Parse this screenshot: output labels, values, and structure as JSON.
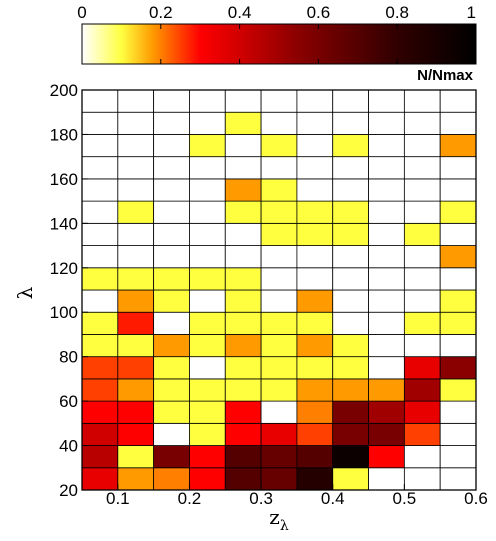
{
  "chart_data": {
    "type": "heatmap",
    "xlabel": "z",
    "xlabel_subscript": "λ",
    "ylabel": "λ",
    "x_edges": [
      0.05,
      0.1,
      0.15,
      0.2,
      0.25,
      0.3,
      0.35,
      0.4,
      0.45,
      0.5,
      0.55,
      0.6
    ],
    "y_edges": [
      20,
      30,
      40,
      50,
      60,
      70,
      80,
      90,
      100,
      110,
      120,
      130,
      140,
      150,
      160,
      170,
      180,
      190,
      200
    ],
    "xlim": [
      0.05,
      0.6
    ],
    "ylim": [
      20,
      200
    ],
    "xticks": [
      0.1,
      0.2,
      0.3,
      0.4,
      0.5,
      0.6
    ],
    "xtick_labels": [
      "0.1",
      "0.2",
      "0.3",
      "0.4",
      "0.5",
      "0.6"
    ],
    "yticks": [
      20,
      40,
      60,
      80,
      100,
      120,
      140,
      160,
      180,
      200
    ],
    "ytick_labels": [
      "20",
      "40",
      "60",
      "80",
      "100",
      "120",
      "140",
      "160",
      "180",
      "200"
    ],
    "colorbar": {
      "label": "N/Nmax",
      "range": [
        0,
        1
      ],
      "ticks": [
        0,
        0.2,
        0.4,
        0.6,
        0.8,
        1
      ],
      "tick_labels": [
        "0",
        "0.2",
        "0.4",
        "0.6",
        "0.8",
        "1"
      ],
      "colormap": [
        {
          "v": 0.0,
          "color": "#ffffff"
        },
        {
          "v": 0.1,
          "color": "#ffff40"
        },
        {
          "v": 0.18,
          "color": "#ff9a00"
        },
        {
          "v": 0.3,
          "color": "#ff0000"
        },
        {
          "v": 0.55,
          "color": "#8a0000"
        },
        {
          "v": 0.8,
          "color": "#300000"
        },
        {
          "v": 1.0,
          "color": "#000000"
        }
      ]
    },
    "grid": true,
    "values_rows_from_bottom": [
      [
        0.35,
        0.18,
        0.2,
        0.3,
        0.7,
        0.65,
        0.85,
        0.1,
        0.0,
        0.0,
        0.0
      ],
      [
        0.45,
        0.1,
        0.6,
        0.3,
        0.7,
        0.65,
        0.7,
        0.95,
        0.3,
        0.0,
        0.0
      ],
      [
        0.4,
        0.3,
        0.0,
        0.1,
        0.3,
        0.35,
        0.25,
        0.6,
        0.6,
        0.25,
        0.0
      ],
      [
        0.3,
        0.3,
        0.1,
        0.1,
        0.3,
        0.0,
        0.2,
        0.6,
        0.5,
        0.35,
        0.0
      ],
      [
        0.25,
        0.18,
        0.1,
        0.1,
        0.1,
        0.1,
        0.18,
        0.18,
        0.18,
        0.5,
        0.1
      ],
      [
        0.25,
        0.25,
        0.1,
        0.0,
        0.1,
        0.1,
        0.1,
        0.1,
        0.0,
        0.35,
        0.55
      ],
      [
        0.1,
        0.1,
        0.18,
        0.1,
        0.18,
        0.1,
        0.18,
        0.1,
        0.0,
        0.0,
        0.0
      ],
      [
        0.1,
        0.28,
        0.0,
        0.1,
        0.1,
        0.1,
        0.1,
        0.0,
        0.0,
        0.1,
        0.1
      ],
      [
        0.0,
        0.18,
        0.1,
        0.0,
        0.1,
        0.0,
        0.18,
        0.0,
        0.0,
        0.0,
        0.1
      ],
      [
        0.1,
        0.1,
        0.1,
        0.1,
        0.1,
        0.0,
        0.0,
        0.0,
        0.0,
        0.0,
        0.0
      ],
      [
        0.0,
        0.0,
        0.0,
        0.0,
        0.0,
        0.0,
        0.0,
        0.0,
        0.0,
        0.0,
        0.18
      ],
      [
        0.0,
        0.0,
        0.0,
        0.0,
        0.0,
        0.1,
        0.1,
        0.1,
        0.0,
        0.1,
        0.0
      ],
      [
        0.0,
        0.1,
        0.0,
        0.0,
        0.1,
        0.1,
        0.1,
        0.1,
        0.0,
        0.0,
        0.1
      ],
      [
        0.0,
        0.0,
        0.0,
        0.0,
        0.18,
        0.1,
        0.0,
        0.0,
        0.0,
        0.0,
        0.0
      ],
      [
        0.0,
        0.0,
        0.0,
        0.0,
        0.0,
        0.0,
        0.0,
        0.0,
        0.0,
        0.0,
        0.0
      ],
      [
        0.0,
        0.0,
        0.0,
        0.1,
        0.0,
        0.1,
        0.0,
        0.1,
        0.0,
        0.0,
        0.18
      ],
      [
        0.0,
        0.0,
        0.0,
        0.0,
        0.1,
        0.0,
        0.0,
        0.0,
        0.0,
        0.0,
        0.0
      ],
      [
        0.0,
        0.0,
        0.0,
        0.0,
        0.0,
        0.0,
        0.0,
        0.0,
        0.0,
        0.0,
        0.0
      ]
    ]
  }
}
